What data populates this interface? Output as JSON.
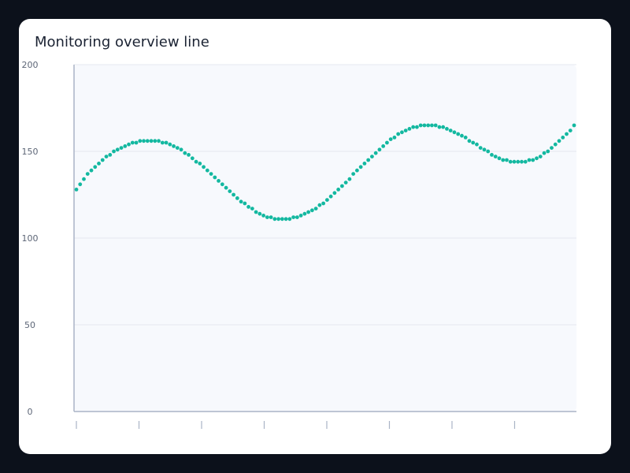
{
  "card": {
    "title": "Monitoring overview line"
  },
  "colors": {
    "background": "#0c111b",
    "card": "#ffffff",
    "plot_bg": "#f7f9fd",
    "grid": "#e4e8f0",
    "axis": "#aab4c6",
    "series": "#13b8a0"
  },
  "chart_data": {
    "type": "line",
    "title": "Monitoring overview line",
    "xlabel": "",
    "ylabel": "",
    "ylim": [
      0,
      200
    ],
    "yticks": [
      0,
      50,
      100,
      150,
      200
    ],
    "ytick_labels": [
      "0",
      "50",
      "100",
      "150",
      "200"
    ],
    "xticks": [
      0,
      10,
      20,
      30,
      40,
      50,
      60,
      70
    ],
    "xlim": [
      0,
      79.5
    ],
    "grid": true,
    "legend": "none",
    "marker": "dot",
    "series": [
      {
        "values": [
          128,
          131,
          134,
          137,
          139,
          141,
          143,
          145,
          147,
          148,
          150,
          151,
          152,
          153,
          154,
          155,
          155,
          156,
          156,
          156,
          156,
          156,
          156,
          155,
          155,
          154,
          153,
          152,
          151,
          149,
          148,
          146,
          144,
          143,
          141,
          139,
          137,
          135,
          133,
          131,
          129,
          127,
          125,
          123,
          121,
          120,
          118,
          117,
          115,
          114,
          113,
          112,
          112,
          111,
          111,
          111,
          111,
          111,
          112,
          112,
          113,
          114,
          115,
          116,
          117,
          119,
          120,
          122,
          124,
          126,
          128,
          130,
          132,
          134,
          137,
          139,
          141,
          143,
          145,
          147,
          149,
          151,
          153,
          155,
          157,
          158,
          160,
          161,
          162,
          163,
          164,
          164,
          165,
          165,
          165,
          165,
          165,
          164,
          164,
          163,
          162,
          161,
          160,
          159,
          158,
          156,
          155,
          154,
          152,
          151,
          150,
          148,
          147,
          146,
          145,
          145,
          144,
          144,
          144,
          144,
          144,
          145,
          145,
          146,
          147,
          149,
          150,
          152,
          154,
          156,
          158,
          160,
          162,
          165
        ]
      }
    ]
  }
}
